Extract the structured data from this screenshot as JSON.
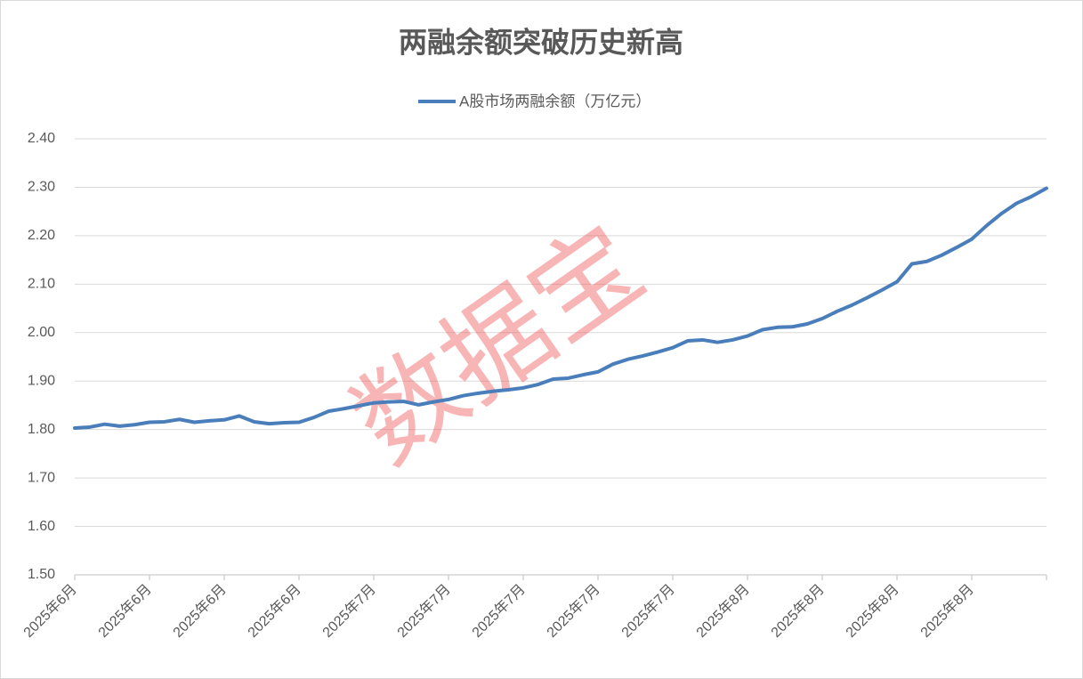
{
  "chart_data": {
    "type": "line",
    "title": "两融余额突破历史新高",
    "watermark": "数据宝",
    "categories": [
      "2025年6月",
      null,
      null,
      null,
      null,
      "2025年6月",
      null,
      null,
      null,
      null,
      "2025年6月",
      null,
      null,
      null,
      null,
      "2025年6月",
      null,
      null,
      null,
      null,
      "2025年7月",
      null,
      null,
      null,
      null,
      "2025年7月",
      null,
      null,
      null,
      null,
      "2025年7月",
      null,
      null,
      null,
      null,
      "2025年7月",
      null,
      null,
      null,
      null,
      "2025年7月",
      null,
      null,
      null,
      null,
      "2025年8月",
      null,
      null,
      null,
      null,
      "2025年8月",
      null,
      null,
      null,
      null,
      "2025年8月",
      null,
      null,
      null,
      null,
      "2025年8月",
      null,
      null,
      null,
      null,
      null
    ],
    "series": [
      {
        "name": "A股市场两融余额（万亿元）",
        "color": "#4a7ebb",
        "values": [
          1.803,
          1.805,
          1.811,
          1.807,
          1.81,
          1.815,
          1.816,
          1.821,
          1.815,
          1.818,
          1.82,
          1.828,
          1.816,
          1.812,
          1.814,
          1.815,
          1.825,
          1.838,
          1.843,
          1.849,
          1.855,
          1.857,
          1.858,
          1.851,
          1.857,
          1.862,
          1.87,
          1.875,
          1.879,
          1.882,
          1.886,
          1.893,
          1.904,
          1.906,
          1.913,
          1.919,
          1.935,
          1.945,
          1.952,
          1.96,
          1.969,
          1.983,
          1.985,
          1.98,
          1.985,
          1.993,
          2.006,
          2.011,
          2.012,
          2.018,
          2.029,
          2.044,
          2.057,
          2.072,
          2.088,
          2.105,
          2.142,
          2.147,
          2.16,
          2.176,
          2.193,
          2.221,
          2.246,
          2.267,
          2.281,
          2.298
        ]
      }
    ],
    "ylim": [
      1.5,
      2.4
    ],
    "yticks": [
      {
        "value": 1.5,
        "label": "1.50"
      },
      {
        "value": 1.6,
        "label": "1.60"
      },
      {
        "value": 1.7,
        "label": "1.70"
      },
      {
        "value": 1.8,
        "label": "1.80"
      },
      {
        "value": 1.9,
        "label": "1.90"
      },
      {
        "value": 2.0,
        "label": "2.00"
      },
      {
        "value": 2.1,
        "label": "2.10"
      },
      {
        "value": 2.2,
        "label": "2.20"
      },
      {
        "value": 2.3,
        "label": "2.30"
      },
      {
        "value": 2.4,
        "label": "2.40"
      }
    ],
    "grid": true,
    "legend": "top"
  }
}
